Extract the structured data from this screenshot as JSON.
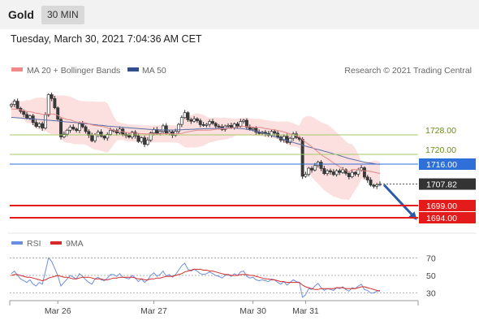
{
  "header": {
    "instrument": "Gold",
    "timeframe": "30 MIN",
    "timestamp": "Tuesday, March 30, 2021 7:04:36 AM CET"
  },
  "legend": {
    "ma20_bb": "MA 20 + Bollinger Bands",
    "ma50": "MA 50",
    "copyright": "Research © 2021 Trading Central",
    "rsi": "RSI",
    "rsi_ma": "9MA"
  },
  "colors": {
    "up_candle": "#ffffff",
    "down_candle": "#3a3a3a",
    "bollinger_band": "#fcdcdc",
    "ma20": "#e58a8a",
    "ma50": "#5a6fa5",
    "resistance": "#2e6fd8",
    "support": "#e31b1b",
    "green_level": "#a6c96a",
    "arrow": "#2d5aa8",
    "rsi": "#6b8ee0",
    "rsi_ma": "#d42a2a"
  },
  "chart_data": [
    {
      "type": "candlestick",
      "title": "Gold",
      "timeframe": "30 MIN",
      "x_tick_labels": [
        "Mar 26",
        "Mar 27",
        "Mar 30",
        "Mar 31"
      ],
      "ylim": [
        1690,
        1750
      ],
      "levels": [
        {
          "value": 1728.0,
          "label": "1728.00",
          "kind": "resistance-minor"
        },
        {
          "value": 1720.0,
          "label": "1720.00",
          "kind": "resistance-minor"
        },
        {
          "value": 1716.0,
          "label": "1716.00",
          "kind": "resistance"
        },
        {
          "value": 1707.82,
          "label": "1707.82",
          "kind": "last-price"
        },
        {
          "value": 1699.0,
          "label": "1699.00",
          "kind": "support"
        },
        {
          "value": 1694.0,
          "label": "1694.00",
          "kind": "support"
        }
      ],
      "forecast_arrow": {
        "from": 1707.5,
        "to": 1694.0
      },
      "series_close": [
        1740.5,
        1741.8,
        1738.9,
        1737.6,
        1736.4,
        1734.9,
        1735.8,
        1733.1,
        1731.5,
        1732.6,
        1730.8,
        1736.2,
        1744.5,
        1742.9,
        1739.1,
        1734.4,
        1727.2,
        1728.3,
        1729.9,
        1731.2,
        1730.4,
        1729.8,
        1732.6,
        1731.3,
        1729.4,
        1727.8,
        1725.6,
        1728.1,
        1729.2,
        1727.5,
        1726.7,
        1728.2,
        1729.9,
        1729.8,
        1728.8,
        1730.4,
        1728.3,
        1727.7,
        1727.1,
        1729.1,
        1727.6,
        1725.3,
        1726.8,
        1724.1,
        1725.9,
        1728.8,
        1730.2,
        1728.6,
        1729.4,
        1731.7,
        1728.6,
        1729.3,
        1727.8,
        1729.4,
        1732.3,
        1735.1,
        1737.1,
        1734.2,
        1733.6,
        1734.6,
        1733.8,
        1732.2,
        1731.9,
        1732.3,
        1733.5,
        1732.7,
        1731.6,
        1731.3,
        1730.2,
        1731.6,
        1731.9,
        1731.0,
        1732.5,
        1731.6,
        1733.5,
        1734.0,
        1731.2,
        1730.3,
        1730.7,
        1729.1,
        1728.6,
        1729.1,
        1728.5,
        1727.8,
        1729.4,
        1728.7,
        1727.1,
        1725.9,
        1727.4,
        1724.9,
        1726.6,
        1728.4,
        1726.9,
        1726.2,
        1711.0,
        1711.8,
        1714.3,
        1713.6,
        1715.4,
        1716.8,
        1714.2,
        1712.1,
        1713.3,
        1712.8,
        1711.7,
        1713.3,
        1712.6,
        1713.7,
        1712.2,
        1710.8,
        1712.6,
        1711.9,
        1713.6,
        1714.5,
        1710.7,
        1709.5,
        1707.4,
        1706.9,
        1707.5,
        1707.82
      ],
      "series": [
        {
          "name": "MA 20 + Bollinger Bands",
          "values": [
            1738.6,
            1738.6,
            1738.5,
            1738.3,
            1738.0,
            1737.6,
            1737.5,
            1737.3,
            1736.9,
            1736.8,
            1736.4,
            1736.3,
            1736.6,
            1736.6,
            1736.4,
            1736.1,
            1735.2,
            1734.7,
            1734.3,
            1734.2,
            1733.7,
            1733.3,
            1733.1,
            1733.0,
            1732.9,
            1732.5,
            1732.1,
            1731.8,
            1731.7,
            1731.5,
            1731.3,
            1730.9,
            1730.3,
            1729.9,
            1729.6,
            1729.5,
            1729.3,
            1729.1,
            1728.8,
            1728.8,
            1728.7,
            1728.6,
            1728.5,
            1728.4,
            1728.4,
            1728.4,
            1728.4,
            1728.4,
            1728.4,
            1728.5,
            1728.5,
            1728.5,
            1728.4,
            1728.4,
            1728.5,
            1728.6,
            1729.0,
            1729.2,
            1729.5,
            1729.7,
            1729.9,
            1729.9,
            1729.9,
            1729.9,
            1729.9,
            1730.1,
            1730.3,
            1730.4,
            1730.5,
            1730.6,
            1730.7,
            1730.8,
            1731.0,
            1731.3,
            1731.4,
            1731.5,
            1731.4,
            1731.3,
            1731.2,
            1731.1,
            1731.1,
            1730.9,
            1730.6,
            1730.4,
            1730.2,
            1730.1,
            1729.8,
            1729.5,
            1729.2,
            1728.8,
            1728.4,
            1728.0,
            1727.6,
            1727.2,
            1726.1,
            1725.0,
            1724.1,
            1723.1,
            1722.0,
            1721.0,
            1719.9,
            1719.0,
            1718.3,
            1717.4,
            1716.5,
            1715.7,
            1714.9,
            1714.1,
            1713.4,
            1712.8,
            1713.8,
            1713.8,
            1713.7,
            1713.5,
            1713.2,
            1713.2,
            1713.0,
            1712.7,
            1712.4,
            1712.2
          ]
        },
        {
          "name": "MA 50",
          "values": [
            1735.2,
            1735.1,
            1735.0,
            1734.9,
            1734.8,
            1734.7,
            1734.6,
            1734.5,
            1734.4,
            1734.3,
            1734.2,
            1734.1,
            1734.0,
            1733.9,
            1733.8,
            1733.7,
            1733.5,
            1733.4,
            1733.3,
            1733.2,
            1733.1,
            1733.0,
            1732.9,
            1732.7,
            1732.6,
            1732.5,
            1732.3,
            1732.2,
            1732.0,
            1731.9,
            1731.8,
            1731.6,
            1731.5,
            1731.4,
            1731.3,
            1731.2,
            1731.1,
            1731.0,
            1730.9,
            1730.8,
            1730.7,
            1730.6,
            1730.5,
            1730.4,
            1730.3,
            1730.2,
            1730.2,
            1730.1,
            1730.1,
            1730.0,
            1730.0,
            1730.0,
            1730.0,
            1730.0,
            1730.1,
            1730.1,
            1730.2,
            1730.2,
            1730.3,
            1730.3,
            1730.4,
            1730.4,
            1730.5,
            1730.5,
            1730.6,
            1730.6,
            1730.7,
            1730.7,
            1730.8,
            1730.8,
            1730.8,
            1730.8,
            1730.8,
            1730.7,
            1730.6,
            1730.5,
            1730.3,
            1730.1,
            1729.8,
            1729.5,
            1729.2,
            1728.9,
            1728.5,
            1728.1,
            1727.7,
            1727.3,
            1726.9,
            1726.5,
            1726.1,
            1725.7,
            1725.3,
            1724.9,
            1724.5,
            1724.2,
            1723.8,
            1723.4,
            1723.0,
            1722.7,
            1722.3,
            1722.0,
            1721.7,
            1721.3,
            1721.0,
            1720.6,
            1720.2,
            1719.9,
            1719.5,
            1719.1,
            1718.7,
            1718.3,
            1718.0,
            1717.7,
            1717.4,
            1717.1,
            1716.8,
            1716.6,
            1716.4,
            1716.2,
            1716.0,
            1715.9
          ]
        }
      ]
    },
    {
      "type": "line",
      "title": "RSI",
      "ylim": [
        25,
        75
      ],
      "y_ticks": [
        70,
        50,
        30
      ],
      "series": [
        {
          "name": "RSI",
          "values": [
            52,
            55,
            50,
            46,
            44,
            42,
            45,
            40,
            38,
            42,
            40,
            55,
            70,
            66,
            58,
            50,
            38,
            42,
            46,
            50,
            48,
            46,
            52,
            49,
            45,
            42,
            40,
            46,
            48,
            45,
            44,
            47,
            51,
            51,
            49,
            52,
            48,
            47,
            46,
            50,
            47,
            43,
            46,
            42,
            45,
            50,
            53,
            49,
            51,
            55,
            49,
            51,
            48,
            51,
            56,
            61,
            64,
            57,
            55,
            57,
            55,
            52,
            51,
            52,
            54,
            52,
            50,
            49,
            47,
            50,
            51,
            49,
            52,
            50,
            54,
            55,
            49,
            47,
            48,
            45,
            44,
            45,
            44,
            43,
            46,
            45,
            42,
            40,
            43,
            39,
            42,
            45,
            43,
            42,
            25,
            28,
            35,
            34,
            38,
            41,
            36,
            33,
            35,
            34,
            33,
            36,
            35,
            37,
            34,
            32,
            36,
            35,
            38,
            40,
            34,
            33,
            30,
            30,
            32,
            33
          ]
        },
        {
          "name": "9MA",
          "values": [
            50,
            51,
            51,
            50,
            49,
            48,
            48,
            47,
            46,
            45,
            44,
            45,
            47,
            48,
            49,
            50,
            49,
            48,
            48,
            47,
            46,
            46,
            47,
            48,
            48,
            48,
            47,
            46,
            46,
            46,
            45,
            45,
            46,
            47,
            47,
            48,
            48,
            48,
            48,
            48,
            47,
            46,
            46,
            45,
            45,
            46,
            46,
            47,
            47,
            48,
            49,
            49,
            49,
            50,
            51,
            52,
            54,
            55,
            56,
            57,
            57,
            57,
            56,
            56,
            55,
            55,
            54,
            53,
            52,
            51,
            51,
            50,
            50,
            50,
            51,
            51,
            51,
            50,
            50,
            49,
            48,
            47,
            46,
            46,
            45,
            45,
            44,
            43,
            43,
            42,
            42,
            42,
            42,
            42,
            39,
            37,
            36,
            35,
            34,
            34,
            35,
            35,
            35,
            35,
            35,
            36,
            36,
            36,
            35,
            35,
            35,
            35,
            36,
            37,
            37,
            36,
            35,
            34,
            33,
            32
          ]
        }
      ]
    }
  ]
}
